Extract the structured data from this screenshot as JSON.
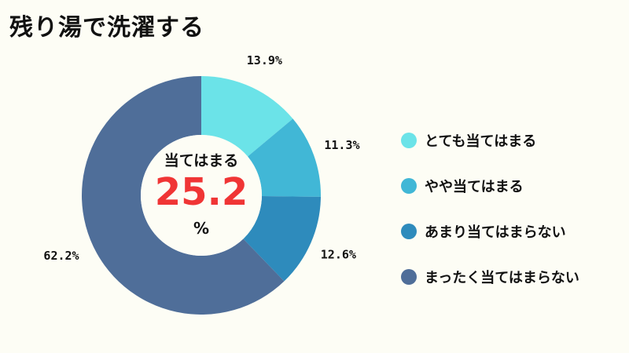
{
  "title": "残り湯で洗濯する",
  "chart_data": {
    "type": "pie",
    "donut": true,
    "title": "残り湯で洗濯する",
    "categories": [
      "とても当てはまる",
      "やや当てはまる",
      "あまり当てはまらない",
      "まったく当てはまらない"
    ],
    "values": [
      13.9,
      11.3,
      12.6,
      62.2
    ],
    "labels": [
      "13.9%",
      "11.3%",
      "12.6%",
      "62.2%"
    ],
    "colors": [
      "#6be3e8",
      "#41b7d6",
      "#2e8bbc",
      "#4f6e99"
    ],
    "legend_position": "right",
    "center": {
      "label": "当てはまる",
      "value": "25.2",
      "unit": "%"
    }
  }
}
